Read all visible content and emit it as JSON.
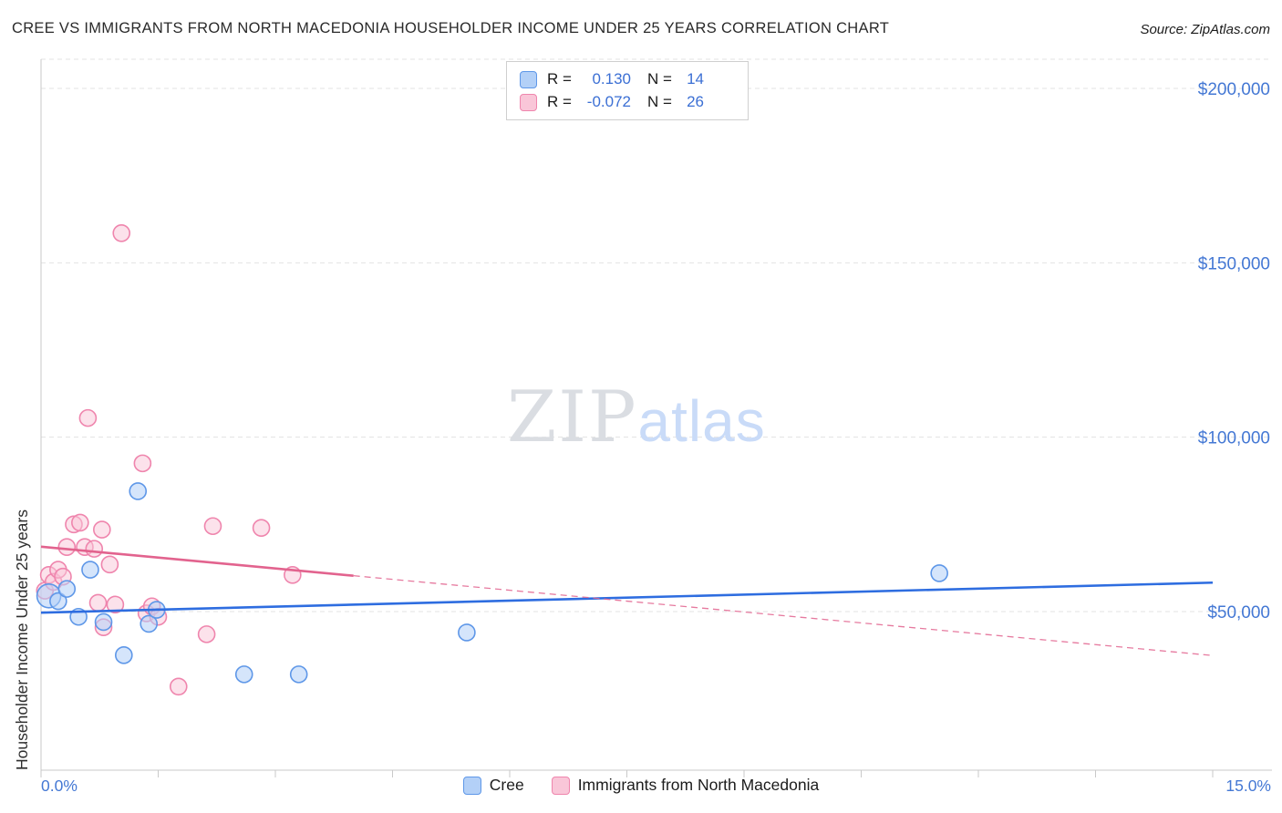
{
  "header": {
    "title": "CREE VS IMMIGRANTS FROM NORTH MACEDONIA HOUSEHOLDER INCOME UNDER 25 YEARS CORRELATION CHART",
    "source": "Source: ZipAtlas.com"
  },
  "watermark": {
    "zip": "ZIP",
    "atlas": "atlas"
  },
  "stats_legend": {
    "rows": [
      {
        "series": "Cree",
        "r_label": "R =",
        "r_value": "0.130",
        "n_label": "N =",
        "n_value": "14"
      },
      {
        "series": "Immigrants from North Macedonia",
        "r_label": "R =",
        "r_value": "-0.072",
        "n_label": "N =",
        "n_value": "26"
      }
    ]
  },
  "axes": {
    "y_title": "Householder Income Under 25 years",
    "y_ticks": [
      {
        "value": 200000,
        "label": "$200,000"
      },
      {
        "value": 150000,
        "label": "$150,000"
      },
      {
        "value": 100000,
        "label": "$100,000"
      },
      {
        "value": 50000,
        "label": "$50,000"
      }
    ],
    "x_tick_labels": [
      {
        "value": 0,
        "label": "0.0%"
      },
      {
        "value": 15,
        "label": "15.0%"
      }
    ],
    "x_minor_tick_step": 1.5
  },
  "bottom_legend": [
    {
      "label": "Cree"
    },
    {
      "label": "Immigrants from North Macedonia"
    }
  ],
  "colors": {
    "cree_fill": "#b3d0f7",
    "cree_stroke": "#5e97e8",
    "cree_trend": "#2e6de0",
    "macedonia_fill": "#f9c6d8",
    "macedonia_stroke": "#ef85ad",
    "macedonia_trend": "#e2638e",
    "tick_label": "#4478d4",
    "stat_value": "#3b6fd4",
    "grid": "#e3e3e3",
    "axis": "#c9c9c9"
  },
  "chart_data": {
    "type": "scatter",
    "title": "CREE VS IMMIGRANTS FROM NORTH MACEDONIA HOUSEHOLDER INCOME UNDER 25 YEARS CORRELATION CHART",
    "xlabel": "",
    "ylabel": "Householder Income Under 25 years",
    "x_unit": "percent",
    "xlim": [
      0,
      15
    ],
    "ylim": [
      0,
      210000
    ],
    "grid": "horizontal-dashed",
    "legend_position": "bottom",
    "series": [
      {
        "name": "Cree",
        "R": 0.13,
        "N": 14,
        "points": [
          {
            "x": 0.1,
            "y": 54500,
            "r": 13
          },
          {
            "x": 0.22,
            "y": 53000
          },
          {
            "x": 0.33,
            "y": 56500
          },
          {
            "x": 0.48,
            "y": 48500
          },
          {
            "x": 0.63,
            "y": 62000
          },
          {
            "x": 0.8,
            "y": 47000
          },
          {
            "x": 1.06,
            "y": 37500
          },
          {
            "x": 1.24,
            "y": 84500
          },
          {
            "x": 1.38,
            "y": 46500
          },
          {
            "x": 1.48,
            "y": 50500
          },
          {
            "x": 2.6,
            "y": 32000
          },
          {
            "x": 3.3,
            "y": 32000
          },
          {
            "x": 5.45,
            "y": 44000
          },
          {
            "x": 11.5,
            "y": 61000
          }
        ],
        "trend": {
          "x1": 0,
          "y1": 49700,
          "x2": 15,
          "y2": 58300,
          "dash_from_x": null
        }
      },
      {
        "name": "Immigrants from North Macedonia",
        "R": -0.072,
        "N": 26,
        "points": [
          {
            "x": 0.05,
            "y": 56000
          },
          {
            "x": 0.1,
            "y": 60500
          },
          {
            "x": 0.16,
            "y": 58500
          },
          {
            "x": 0.22,
            "y": 62000
          },
          {
            "x": 0.28,
            "y": 60000
          },
          {
            "x": 0.33,
            "y": 68500
          },
          {
            "x": 0.42,
            "y": 75000
          },
          {
            "x": 0.5,
            "y": 75500
          },
          {
            "x": 0.56,
            "y": 68500
          },
          {
            "x": 0.6,
            "y": 105500
          },
          {
            "x": 0.68,
            "y": 68000
          },
          {
            "x": 0.73,
            "y": 52500
          },
          {
            "x": 0.78,
            "y": 73500
          },
          {
            "x": 0.8,
            "y": 45500
          },
          {
            "x": 0.88,
            "y": 63500
          },
          {
            "x": 0.95,
            "y": 52000
          },
          {
            "x": 1.03,
            "y": 158500
          },
          {
            "x": 1.3,
            "y": 92500
          },
          {
            "x": 1.35,
            "y": 49500
          },
          {
            "x": 1.42,
            "y": 51500
          },
          {
            "x": 1.5,
            "y": 48500
          },
          {
            "x": 1.76,
            "y": 28500
          },
          {
            "x": 2.12,
            "y": 43500
          },
          {
            "x": 2.2,
            "y": 74500
          },
          {
            "x": 2.82,
            "y": 74000
          },
          {
            "x": 3.22,
            "y": 60500
          }
        ],
        "trend": {
          "x1": 0,
          "y1": 68600,
          "x2": 15,
          "y2": 37400,
          "dash_from_x": 4.0
        }
      }
    ]
  }
}
